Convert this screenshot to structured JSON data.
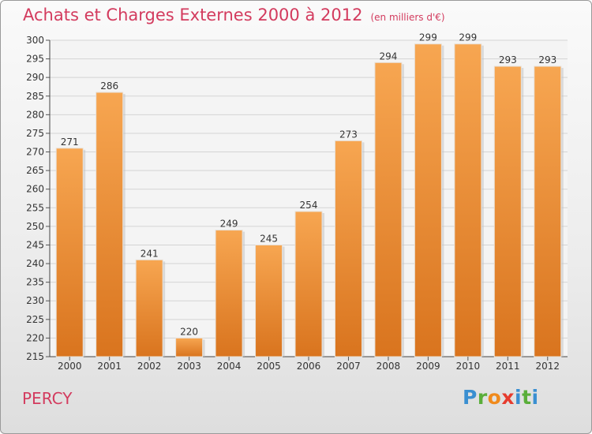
{
  "title": "Achats et Charges Externes 2000 à 2012",
  "unit": "(en milliers d'€)",
  "city": "PERCY",
  "logo": {
    "letters": [
      "P",
      "r",
      "o",
      "x",
      "i",
      "t",
      "i"
    ],
    "colors": [
      "#3a8fd1",
      "#5aae3a",
      "#f08a1c",
      "#e63c2e",
      "#3a8fd1",
      "#5aae3a",
      "#3a8fd1"
    ]
  },
  "colors": {
    "bar_light": "#f7a651",
    "bar_dark": "#d9741e",
    "title": "#d33b5e"
  },
  "chart_data": {
    "type": "bar",
    "categories": [
      "2000",
      "2001",
      "2002",
      "2003",
      "2004",
      "2005",
      "2006",
      "2007",
      "2008",
      "2009",
      "2010",
      "2011",
      "2012"
    ],
    "values": [
      271,
      286,
      241,
      220,
      249,
      245,
      254,
      273,
      294,
      299,
      299,
      293,
      293
    ],
    "ylim": [
      215,
      300
    ],
    "yticks": [
      215,
      220,
      225,
      230,
      235,
      240,
      245,
      250,
      255,
      260,
      265,
      270,
      275,
      280,
      285,
      290,
      295,
      300
    ],
    "grid": true
  }
}
